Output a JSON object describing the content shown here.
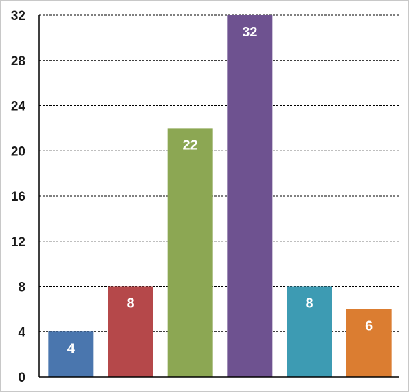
{
  "chart_data": {
    "type": "bar",
    "categories": [
      "",
      "",
      "",
      "",
      "",
      ""
    ],
    "values": [
      4,
      8,
      22,
      32,
      8,
      6
    ],
    "colors": [
      "#4a76ae",
      "#b5484a",
      "#8ca753",
      "#6e5290",
      "#3d9bb3",
      "#db7d31"
    ],
    "data_labels": [
      "4",
      "8",
      "22",
      "32",
      "8",
      "6"
    ],
    "title": "",
    "xlabel": "",
    "ylabel": "",
    "ylim": [
      0,
      32
    ],
    "yticks": [
      0,
      4,
      8,
      12,
      16,
      20,
      24,
      28,
      32
    ],
    "ytick_labels": [
      "0",
      "4",
      "8",
      "12",
      "16",
      "20",
      "24",
      "28",
      "32"
    ],
    "grid": true,
    "legend": "none"
  }
}
